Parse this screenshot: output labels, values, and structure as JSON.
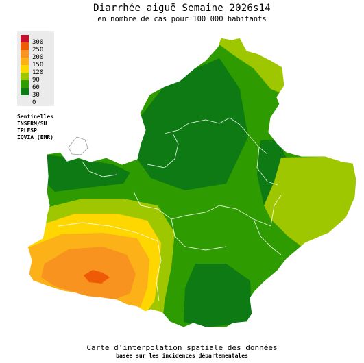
{
  "title": "Diarrhée aiguë Semaine 2026s14",
  "subtitle": "en nombre de cas pour 100 000 habitants",
  "legend": {
    "items": [
      {
        "label": "300",
        "color": "#c8102e"
      },
      {
        "label": "250",
        "color": "#ee5a06"
      },
      {
        "label": "200",
        "color": "#f7931e"
      },
      {
        "label": "150",
        "color": "#fbb117"
      },
      {
        "label": "120",
        "color": "#ffd700"
      },
      {
        "label": "90",
        "color": "#9ec700"
      },
      {
        "label": "60",
        "color": "#2e9b00"
      },
      {
        "label": "30",
        "color": "#0e7a14"
      },
      {
        "label": "0",
        "color": "#0e7a14"
      }
    ]
  },
  "sources": [
    "Sentinelles",
    "INSERM/SU",
    "IPLESP",
    "IQVIA (EMR)"
  ],
  "footer": {
    "line1": "Carte d'interpolation spatiale des données",
    "line2": "basée sur les incidences départementales"
  }
}
